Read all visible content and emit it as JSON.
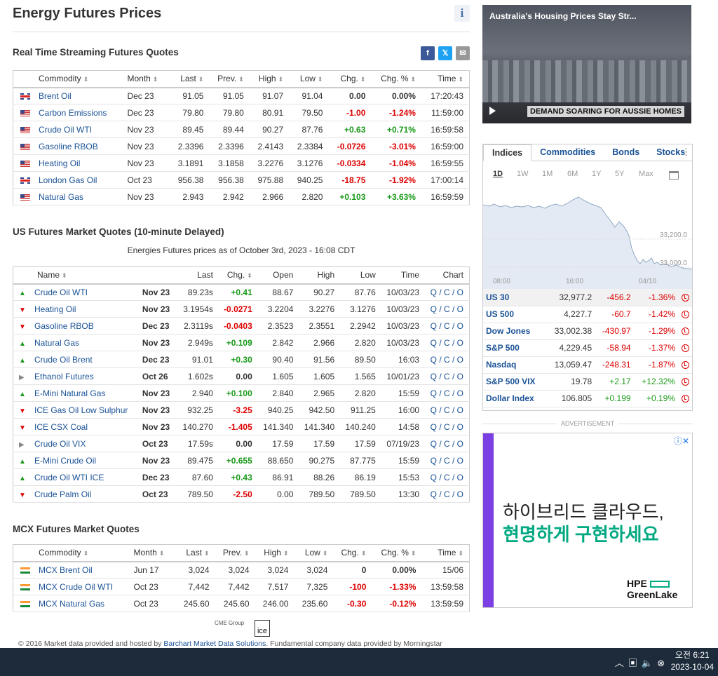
{
  "page": {
    "title": "Energy Futures Prices"
  },
  "realtime": {
    "title": "Real Time Streaming Futures Quotes",
    "headers": [
      "Commodity",
      "Month",
      "Last",
      "Prev.",
      "High",
      "Low",
      "Chg.",
      "Chg. %",
      "Time"
    ],
    "rows": [
      {
        "flag": "uk",
        "name": "Brent Oil",
        "month": "Dec 23",
        "last": "91.05",
        "prev": "91.05",
        "high": "91.07",
        "low": "91.04",
        "chg": "0.00",
        "chgp": "0.00%",
        "time": "17:20:43",
        "dir": "zero"
      },
      {
        "flag": "us",
        "name": "Carbon Emissions",
        "month": "Dec 23",
        "last": "79.80",
        "prev": "79.80",
        "high": "80.91",
        "low": "79.50",
        "chg": "-1.00",
        "chgp": "-1.24%",
        "time": "11:59:00",
        "dir": "neg"
      },
      {
        "flag": "us",
        "name": "Crude Oil WTI",
        "month": "Nov 23",
        "last": "89.45",
        "prev": "89.44",
        "high": "90.27",
        "low": "87.76",
        "chg": "+0.63",
        "chgp": "+0.71%",
        "time": "16:59:58",
        "dir": "pos"
      },
      {
        "flag": "us",
        "name": "Gasoline RBOB",
        "month": "Nov 23",
        "last": "2.3396",
        "prev": "2.3396",
        "high": "2.4143",
        "low": "2.3384",
        "chg": "-0.0726",
        "chgp": "-3.01%",
        "time": "16:59:00",
        "dir": "neg"
      },
      {
        "flag": "us",
        "name": "Heating Oil",
        "month": "Nov 23",
        "last": "3.1891",
        "prev": "3.1858",
        "high": "3.2276",
        "low": "3.1276",
        "chg": "-0.0334",
        "chgp": "-1.04%",
        "time": "16:59:55",
        "dir": "neg"
      },
      {
        "flag": "uk",
        "name": "London Gas Oil",
        "month": "Oct 23",
        "last": "956.38",
        "prev": "956.38",
        "high": "975.88",
        "low": "940.25",
        "chg": "-18.75",
        "chgp": "-1.92%",
        "time": "17:00:14",
        "dir": "neg"
      },
      {
        "flag": "us",
        "name": "Natural Gas",
        "month": "Nov 23",
        "last": "2.943",
        "prev": "2.942",
        "high": "2.966",
        "low": "2.820",
        "chg": "+0.103",
        "chgp": "+3.63%",
        "time": "16:59:59",
        "dir": "pos"
      }
    ]
  },
  "us": {
    "title": "US Futures Market Quotes (10-minute Delayed)",
    "note": "Energies Futures prices as of October 3rd, 2023 - 16:08 CDT",
    "headers": [
      "Name",
      "Last",
      "Chg.",
      "Open",
      "High",
      "Low",
      "Time",
      "Chart"
    ],
    "rows": [
      {
        "arrow": "up",
        "name": "Crude Oil WTI",
        "month": "Nov 23",
        "last": "89.23s",
        "chg": "+0.41",
        "open": "88.67",
        "high": "90.27",
        "low": "87.76",
        "time": "10/03/23",
        "dir": "pos"
      },
      {
        "arrow": "dn",
        "name": "Heating Oil",
        "month": "Nov 23",
        "last": "3.1954s",
        "chg": "-0.0271",
        "open": "3.2204",
        "high": "3.2276",
        "low": "3.1276",
        "time": "10/03/23",
        "dir": "neg"
      },
      {
        "arrow": "dn",
        "name": "Gasoline RBOB",
        "month": "Dec 23",
        "last": "2.3119s",
        "chg": "-0.0403",
        "open": "2.3523",
        "high": "2.3551",
        "low": "2.2942",
        "time": "10/03/23",
        "dir": "neg"
      },
      {
        "arrow": "up",
        "name": "Natural Gas",
        "month": "Nov 23",
        "last": "2.949s",
        "chg": "+0.109",
        "open": "2.842",
        "high": "2.966",
        "low": "2.820",
        "time": "10/03/23",
        "dir": "pos"
      },
      {
        "arrow": "up",
        "name": "Crude Oil Brent",
        "month": "Dec 23",
        "last": "91.01",
        "chg": "+0.30",
        "open": "90.40",
        "high": "91.56",
        "low": "89.50",
        "time": "16:03",
        "dir": "pos"
      },
      {
        "arrow": "fl",
        "name": "Ethanol Futures",
        "month": "Oct 26",
        "last": "1.602s",
        "chg": "0.00",
        "open": "1.605",
        "high": "1.605",
        "low": "1.565",
        "time": "10/01/23",
        "dir": "zero"
      },
      {
        "arrow": "up",
        "name": "E-Mini Natural Gas",
        "month": "Nov 23",
        "last": "2.940",
        "chg": "+0.100",
        "open": "2.840",
        "high": "2.965",
        "low": "2.820",
        "time": "15:59",
        "dir": "pos"
      },
      {
        "arrow": "dn",
        "name": "ICE Gas Oil Low Sulphur",
        "month": "Nov 23",
        "last": "932.25",
        "chg": "-3.25",
        "open": "940.25",
        "high": "942.50",
        "low": "911.25",
        "time": "16:00",
        "dir": "neg"
      },
      {
        "arrow": "dn",
        "name": "ICE CSX Coal",
        "month": "Nov 23",
        "last": "140.270",
        "chg": "-1.405",
        "open": "141.340",
        "high": "141.340",
        "low": "140.240",
        "time": "14:58",
        "dir": "neg"
      },
      {
        "arrow": "fl",
        "name": "Crude Oil VIX",
        "month": "Oct 23",
        "last": "17.59s",
        "chg": "0.00",
        "open": "17.59",
        "high": "17.59",
        "low": "17.59",
        "time": "07/19/23",
        "dir": "zero"
      },
      {
        "arrow": "up",
        "name": "E-Mini Crude Oil",
        "month": "Nov 23",
        "last": "89.475",
        "chg": "+0.655",
        "open": "88.650",
        "high": "90.275",
        "low": "87.775",
        "time": "15:59",
        "dir": "pos"
      },
      {
        "arrow": "up",
        "name": "Crude Oil WTI ICE",
        "month": "Dec 23",
        "last": "87.60",
        "chg": "+0.43",
        "open": "86.91",
        "high": "88.26",
        "low": "86.19",
        "time": "15:53",
        "dir": "pos"
      },
      {
        "arrow": "dn",
        "name": "Crude Palm Oil",
        "month": "Oct 23",
        "last": "789.50",
        "chg": "-2.50",
        "open": "0.00",
        "high": "789.50",
        "low": "789.50",
        "time": "13:30",
        "dir": "neg"
      }
    ],
    "chart_links": "Q / C / O"
  },
  "mcx": {
    "title": "MCX Futures Market Quotes",
    "headers": [
      "Commodity",
      "Month",
      "Last",
      "Prev.",
      "High",
      "Low",
      "Chg.",
      "Chg. %",
      "Time"
    ],
    "rows": [
      {
        "flag": "in",
        "name": "MCX Brent Oil",
        "month": "Jun 17",
        "last": "3,024",
        "prev": "3,024",
        "high": "3,024",
        "low": "3,024",
        "chg": "0",
        "chgp": "0.00%",
        "time": "15/06",
        "dir": "zero"
      },
      {
        "flag": "in",
        "name": "MCX Crude Oil WTI",
        "month": "Oct 23",
        "last": "7,442",
        "prev": "7,442",
        "high": "7,517",
        "low": "7,325",
        "chg": "-100",
        "chgp": "-1.33%",
        "time": "13:59:58",
        "dir": "neg"
      },
      {
        "flag": "in",
        "name": "MCX Natural Gas",
        "month": "Oct 23",
        "last": "245.60",
        "prev": "245.60",
        "high": "246.00",
        "low": "235.60",
        "chg": "-0.30",
        "chgp": "-0.12%",
        "time": "13:59:59",
        "dir": "neg"
      }
    ]
  },
  "footer": {
    "pre": "© 2016 Market data provided and hosted by ",
    "link": "Barchart Market Data Solutions",
    "post": ". Fundamental company data provided by Morningstar",
    "cme": "CME Group",
    "ice": "ice"
  },
  "video": {
    "title": "Australia's Housing Prices Stay Str...",
    "band": "DEMAND SOARING FOR AUSSIE HOMES"
  },
  "widget": {
    "tabs": [
      "Indices",
      "Commodities",
      "Bonds",
      "Stocks"
    ],
    "ranges": [
      "1D",
      "1W",
      "1M",
      "6M",
      "1Y",
      "5Y",
      "Max"
    ],
    "yticks": [
      "33,200.0",
      "33,000.0"
    ],
    "xticks": [
      "08:00",
      "16:00",
      "04/10"
    ],
    "rows": [
      {
        "name": "US 30",
        "last": "32,977.2",
        "chg": "-456.2",
        "chgp": "-1.36%",
        "dir": "neg"
      },
      {
        "name": "US 500",
        "last": "4,227.7",
        "chg": "-60.7",
        "chgp": "-1.42%",
        "dir": "neg"
      },
      {
        "name": "Dow Jones",
        "last": "33,002.38",
        "chg": "-430.97",
        "chgp": "-1.29%",
        "dir": "neg"
      },
      {
        "name": "S&P 500",
        "last": "4,229.45",
        "chg": "-58.94",
        "chgp": "-1.37%",
        "dir": "neg"
      },
      {
        "name": "Nasdaq",
        "last": "13,059.47",
        "chg": "-248.31",
        "chgp": "-1.87%",
        "dir": "neg"
      },
      {
        "name": "S&P 500 VIX",
        "last": "19.78",
        "chg": "+2.17",
        "chgp": "+12.32%",
        "dir": "pos"
      },
      {
        "name": "Dollar Index",
        "last": "106.805",
        "chg": "+0.199",
        "chgp": "+0.19%",
        "dir": "pos"
      }
    ]
  },
  "ad": {
    "label": "ADVERTISEMENT",
    "line1": "하이브리드 클라우드,",
    "line2": "현명하게 구현하세요",
    "brand1": "HPE",
    "brand2": "GreenLake"
  },
  "taskbar": {
    "ampm": "오전 6:21",
    "date": "2023-10-04"
  }
}
